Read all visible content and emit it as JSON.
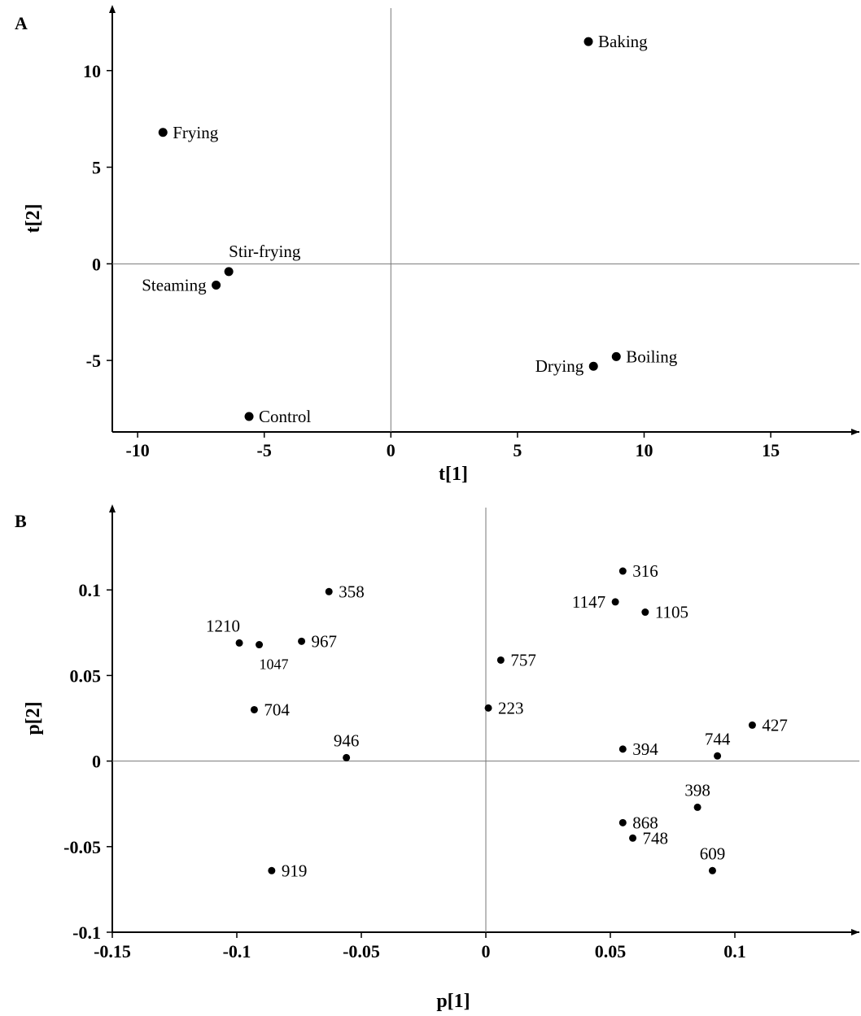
{
  "chart_data": [
    {
      "type": "scatter",
      "panel": "A",
      "xlabel": "t[1]",
      "ylabel": "t[2]",
      "xlim": [
        -11,
        18.5
      ],
      "ylim": [
        -8.7,
        13.4
      ],
      "xticks": [
        -10,
        -5,
        0,
        5,
        10,
        15
      ],
      "xtick_labels": [
        "-10",
        "-5",
        "0",
        "5",
        "10",
        "15"
      ],
      "yticks": [
        -5,
        0,
        5,
        10
      ],
      "ytick_labels": [
        "-5",
        "0",
        "5",
        "10"
      ],
      "grid": false,
      "zero_lines": true,
      "points": [
        {
          "label": "Baking",
          "x": 7.8,
          "y": 11.5,
          "label_side": "right"
        },
        {
          "label": "Frying",
          "x": -9.0,
          "y": 6.8,
          "label_side": "right"
        },
        {
          "label": "Stir-frying",
          "x": -6.4,
          "y": -0.4,
          "label_side": "above-right"
        },
        {
          "label": "Steaming",
          "x": -6.9,
          "y": -1.1,
          "label_side": "left"
        },
        {
          "label": "Control",
          "x": -5.6,
          "y": -7.9,
          "label_side": "right"
        },
        {
          "label": "Boiling",
          "x": 8.9,
          "y": -4.8,
          "label_side": "right"
        },
        {
          "label": "Drying",
          "x": 8.0,
          "y": -5.3,
          "label_side": "left"
        }
      ]
    },
    {
      "type": "scatter",
      "panel": "B",
      "xlabel": "p[1]",
      "ylabel": "p[2]",
      "xlim": [
        -0.15,
        0.15
      ],
      "ylim": [
        -0.1,
        0.15
      ],
      "xticks": [
        -0.15,
        -0.1,
        -0.05,
        0,
        0.05,
        0.1
      ],
      "xtick_labels": [
        "-0.15",
        "-0.1",
        "-0.05",
        "0",
        "0.05",
        "0.1"
      ],
      "yticks": [
        -0.1,
        -0.05,
        0,
        0.05,
        0.1
      ],
      "ytick_labels": [
        "-0.1",
        "-0.05",
        "0",
        "0.05",
        "0.1"
      ],
      "grid": false,
      "zero_lines": true,
      "points": [
        {
          "label": "316",
          "x": 0.055,
          "y": 0.111,
          "label_side": "right"
        },
        {
          "label": "1147",
          "x": 0.052,
          "y": 0.093,
          "label_side": "left"
        },
        {
          "label": "1105",
          "x": 0.064,
          "y": 0.087,
          "label_side": "right"
        },
        {
          "label": "358",
          "x": -0.063,
          "y": 0.099,
          "label_side": "right"
        },
        {
          "label": "1210",
          "x": -0.099,
          "y": 0.069,
          "label_side": "above-left"
        },
        {
          "label": "1047",
          "x": -0.091,
          "y": 0.068,
          "label_side": "below"
        },
        {
          "label": "967",
          "x": -0.074,
          "y": 0.07,
          "label_side": "right"
        },
        {
          "label": "757",
          "x": 0.006,
          "y": 0.059,
          "label_side": "right"
        },
        {
          "label": "223",
          "x": 0.001,
          "y": 0.031,
          "label_side": "right"
        },
        {
          "label": "704",
          "x": -0.093,
          "y": 0.03,
          "label_side": "right"
        },
        {
          "label": "427",
          "x": 0.107,
          "y": 0.021,
          "label_side": "right"
        },
        {
          "label": "394",
          "x": 0.055,
          "y": 0.007,
          "label_side": "right"
        },
        {
          "label": "744",
          "x": 0.093,
          "y": 0.003,
          "label_side": "above"
        },
        {
          "label": "946",
          "x": -0.056,
          "y": 0.002,
          "label_side": "above"
        },
        {
          "label": "398",
          "x": 0.085,
          "y": -0.027,
          "label_side": "above"
        },
        {
          "label": "868",
          "x": 0.055,
          "y": -0.036,
          "label_side": "right"
        },
        {
          "label": "748",
          "x": 0.059,
          "y": -0.045,
          "label_side": "right"
        },
        {
          "label": "609",
          "x": 0.091,
          "y": -0.064,
          "label_side": "above"
        },
        {
          "label": "919",
          "x": -0.086,
          "y": -0.064,
          "label_side": "right"
        }
      ]
    }
  ],
  "panels": {
    "a_letter": "A",
    "b_letter": "B"
  }
}
